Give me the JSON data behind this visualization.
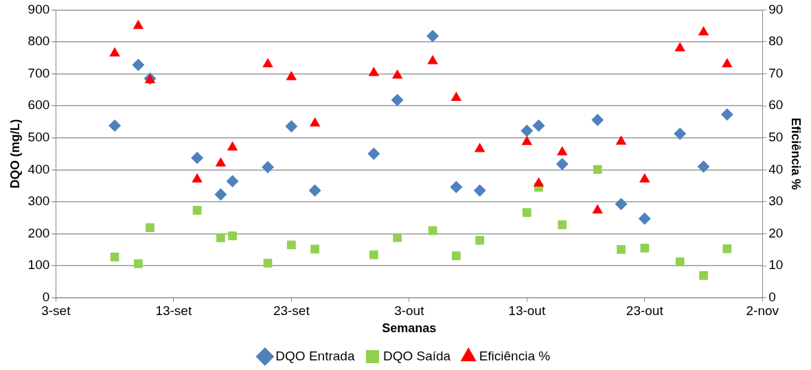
{
  "chart_data": {
    "type": "scatter",
    "xlabel": "Semanas",
    "ylabel": "DQO (mg/L)",
    "y2label": "Eficiência %",
    "x": [
      "--09-08",
      "--09-10",
      "--09-11",
      "--09-15",
      "--09-17",
      "--09-18",
      "--09-21",
      "--09-23",
      "--09-25",
      "--09-30",
      "--10-02",
      "--10-05",
      "--10-07",
      "--10-09",
      "--10-13",
      "--10-14",
      "--10-16",
      "--10-19",
      "--10-21",
      "--10-23",
      "--10-26",
      "--10-28",
      "--10-30"
    ],
    "series": [
      {
        "name": "DQO Entrada",
        "color": "#4f81bd",
        "marker": "diamond",
        "values": [
          538,
          728,
          685,
          437,
          323,
          364,
          408,
          536,
          335,
          450,
          618,
          818,
          346,
          335,
          522,
          538,
          418,
          556,
          293,
          247,
          513,
          410,
          573
        ]
      },
      {
        "name": "DQO Saída",
        "color": "#92d050",
        "marker": "square",
        "values": [
          127,
          106,
          219,
          273,
          187,
          193,
          108,
          165,
          152,
          134,
          188,
          210,
          131,
          179,
          266,
          345,
          228,
          401,
          151,
          155,
          112,
          69,
          153
        ]
      },
      {
        "name": "Eficiência %",
        "color": "#ff0000",
        "marker": "triangle",
        "axis": "y2",
        "values": [
          76.4,
          85,
          68,
          37,
          42,
          47,
          73,
          69,
          54.5,
          70.3,
          69.5,
          74,
          62.5,
          46.5,
          48.7,
          35.7,
          45.5,
          27.3,
          48.8,
          37,
          78,
          83,
          73
        ]
      }
    ],
    "xlim": [
      "--09-03",
      "--11-02"
    ],
    "xticks": [
      {
        "value": "--09-03",
        "label": "3-set"
      },
      {
        "value": "--09-13",
        "label": "13-set"
      },
      {
        "value": "--09-23",
        "label": "23-set"
      },
      {
        "value": "--10-03",
        "label": "3-out"
      },
      {
        "value": "--10-13",
        "label": "13-out"
      },
      {
        "value": "--10-23",
        "label": "23-out"
      },
      {
        "value": "--11-02",
        "label": "2-nov"
      }
    ],
    "ylim": [
      0,
      900
    ],
    "yticks": [
      0,
      100,
      200,
      300,
      400,
      500,
      600,
      700,
      800,
      900
    ],
    "y2lim": [
      0,
      90
    ],
    "y2ticks": [
      0,
      10,
      20,
      30,
      40,
      50,
      60,
      70,
      80,
      90
    ],
    "grid": "y",
    "legend": "bottom"
  }
}
